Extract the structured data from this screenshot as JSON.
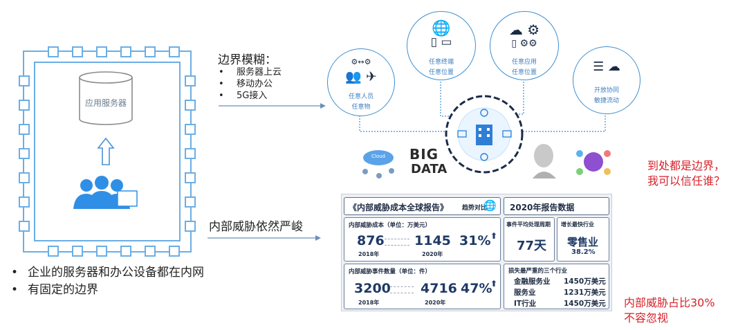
{
  "network": {
    "server_label": "应用服务器",
    "bullets": [
      "企业的服务器和办公设备都在内网",
      "有固定的边界"
    ]
  },
  "boundary_blur": {
    "title": "边界模糊：",
    "items": [
      "服务器上云",
      "移动办公",
      "5G接入"
    ]
  },
  "inner_threat_title": "内部威胁依然严峻",
  "circles": [
    {
      "line1": "任意人员",
      "line2": "任意物"
    },
    {
      "line1": "任意终端",
      "line2": "任意位置"
    },
    {
      "line1": "任意应用",
      "line2": "任意位置"
    },
    {
      "line1": "开放协同",
      "line2": "敏捷流动"
    }
  ],
  "tech_images": {
    "cloud": "Cloud",
    "big": "BIG",
    "data": "DATA"
  },
  "red_notes": {
    "everywhere_line1": "到处都是边界，",
    "everywhere_line2": "我可以信任谁？",
    "ratio_line1": "内部威胁占比30%",
    "ratio_line2": "不容忽视"
  },
  "report": {
    "header_left": "《内部威胁成本全球报告》",
    "header_left_suffix": "趋势对比",
    "header_right": "2020年报告数据",
    "cost_label": "内部威胁成本（单位：万美元）",
    "cost_2018": "876",
    "cost_2020": "1145",
    "cost_pct": "31%",
    "year_2018": "2018年",
    "year_2020": "2020年",
    "events_label": "内部威胁事件数量（单位：件）",
    "events_2018": "3200",
    "events_2020": "4716",
    "events_pct": "47%",
    "avg_label": "事件平均处理周期",
    "avg_value": "77天",
    "fastest_label": "增长最快行业",
    "fastest_value": "零售业",
    "fastest_pct": "38.2%",
    "loss_label": "损失最严重的三个行业",
    "industries": [
      {
        "name": "金融服务业",
        "value": "1450万美元"
      },
      {
        "name": "服务业",
        "value": "1231万美元"
      },
      {
        "name": "IT行业",
        "value": "1450万美元"
      }
    ]
  }
}
